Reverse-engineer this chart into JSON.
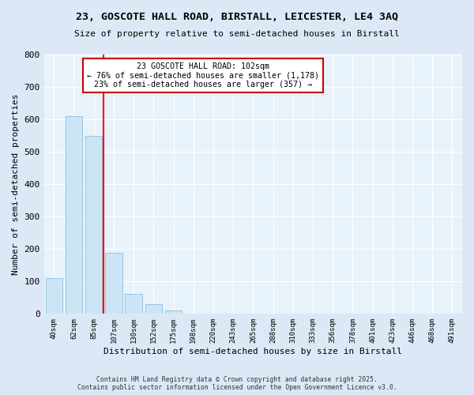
{
  "title": "23, GOSCOTE HALL ROAD, BIRSTALL, LEICESTER, LE4 3AQ",
  "subtitle": "Size of property relative to semi-detached houses in Birstall",
  "xlabel": "Distribution of semi-detached houses by size in Birstall",
  "ylabel": "Number of semi-detached properties",
  "bar_labels": [
    "40sqm",
    "62sqm",
    "85sqm",
    "107sqm",
    "130sqm",
    "152sqm",
    "175sqm",
    "198sqm",
    "220sqm",
    "243sqm",
    "265sqm",
    "288sqm",
    "310sqm",
    "333sqm",
    "356sqm",
    "378sqm",
    "401sqm",
    "423sqm",
    "446sqm",
    "468sqm",
    "491sqm"
  ],
  "bar_values": [
    110,
    610,
    548,
    188,
    62,
    30,
    10,
    0,
    0,
    0,
    0,
    0,
    0,
    0,
    0,
    0,
    0,
    0,
    0,
    0,
    0
  ],
  "bar_color": "#cce5f5",
  "bar_edge_color": "#99c4e0",
  "vline_color": "red",
  "annotation_title": "23 GOSCOTE HALL ROAD: 102sqm",
  "annotation_line1": "← 76% of semi-detached houses are smaller (1,178)",
  "annotation_line2": "23% of semi-detached houses are larger (357) →",
  "annotation_box_color": "white",
  "annotation_box_edge": "#cc0000",
  "ylim": [
    0,
    800
  ],
  "yticks": [
    0,
    100,
    200,
    300,
    400,
    500,
    600,
    700,
    800
  ],
  "background_color": "#dce8f5",
  "plot_bg_color": "#e8f2fa",
  "footer_line1": "Contains HM Land Registry data © Crown copyright and database right 2025.",
  "footer_line2": "Contains public sector information licensed under the Open Government Licence v3.0."
}
